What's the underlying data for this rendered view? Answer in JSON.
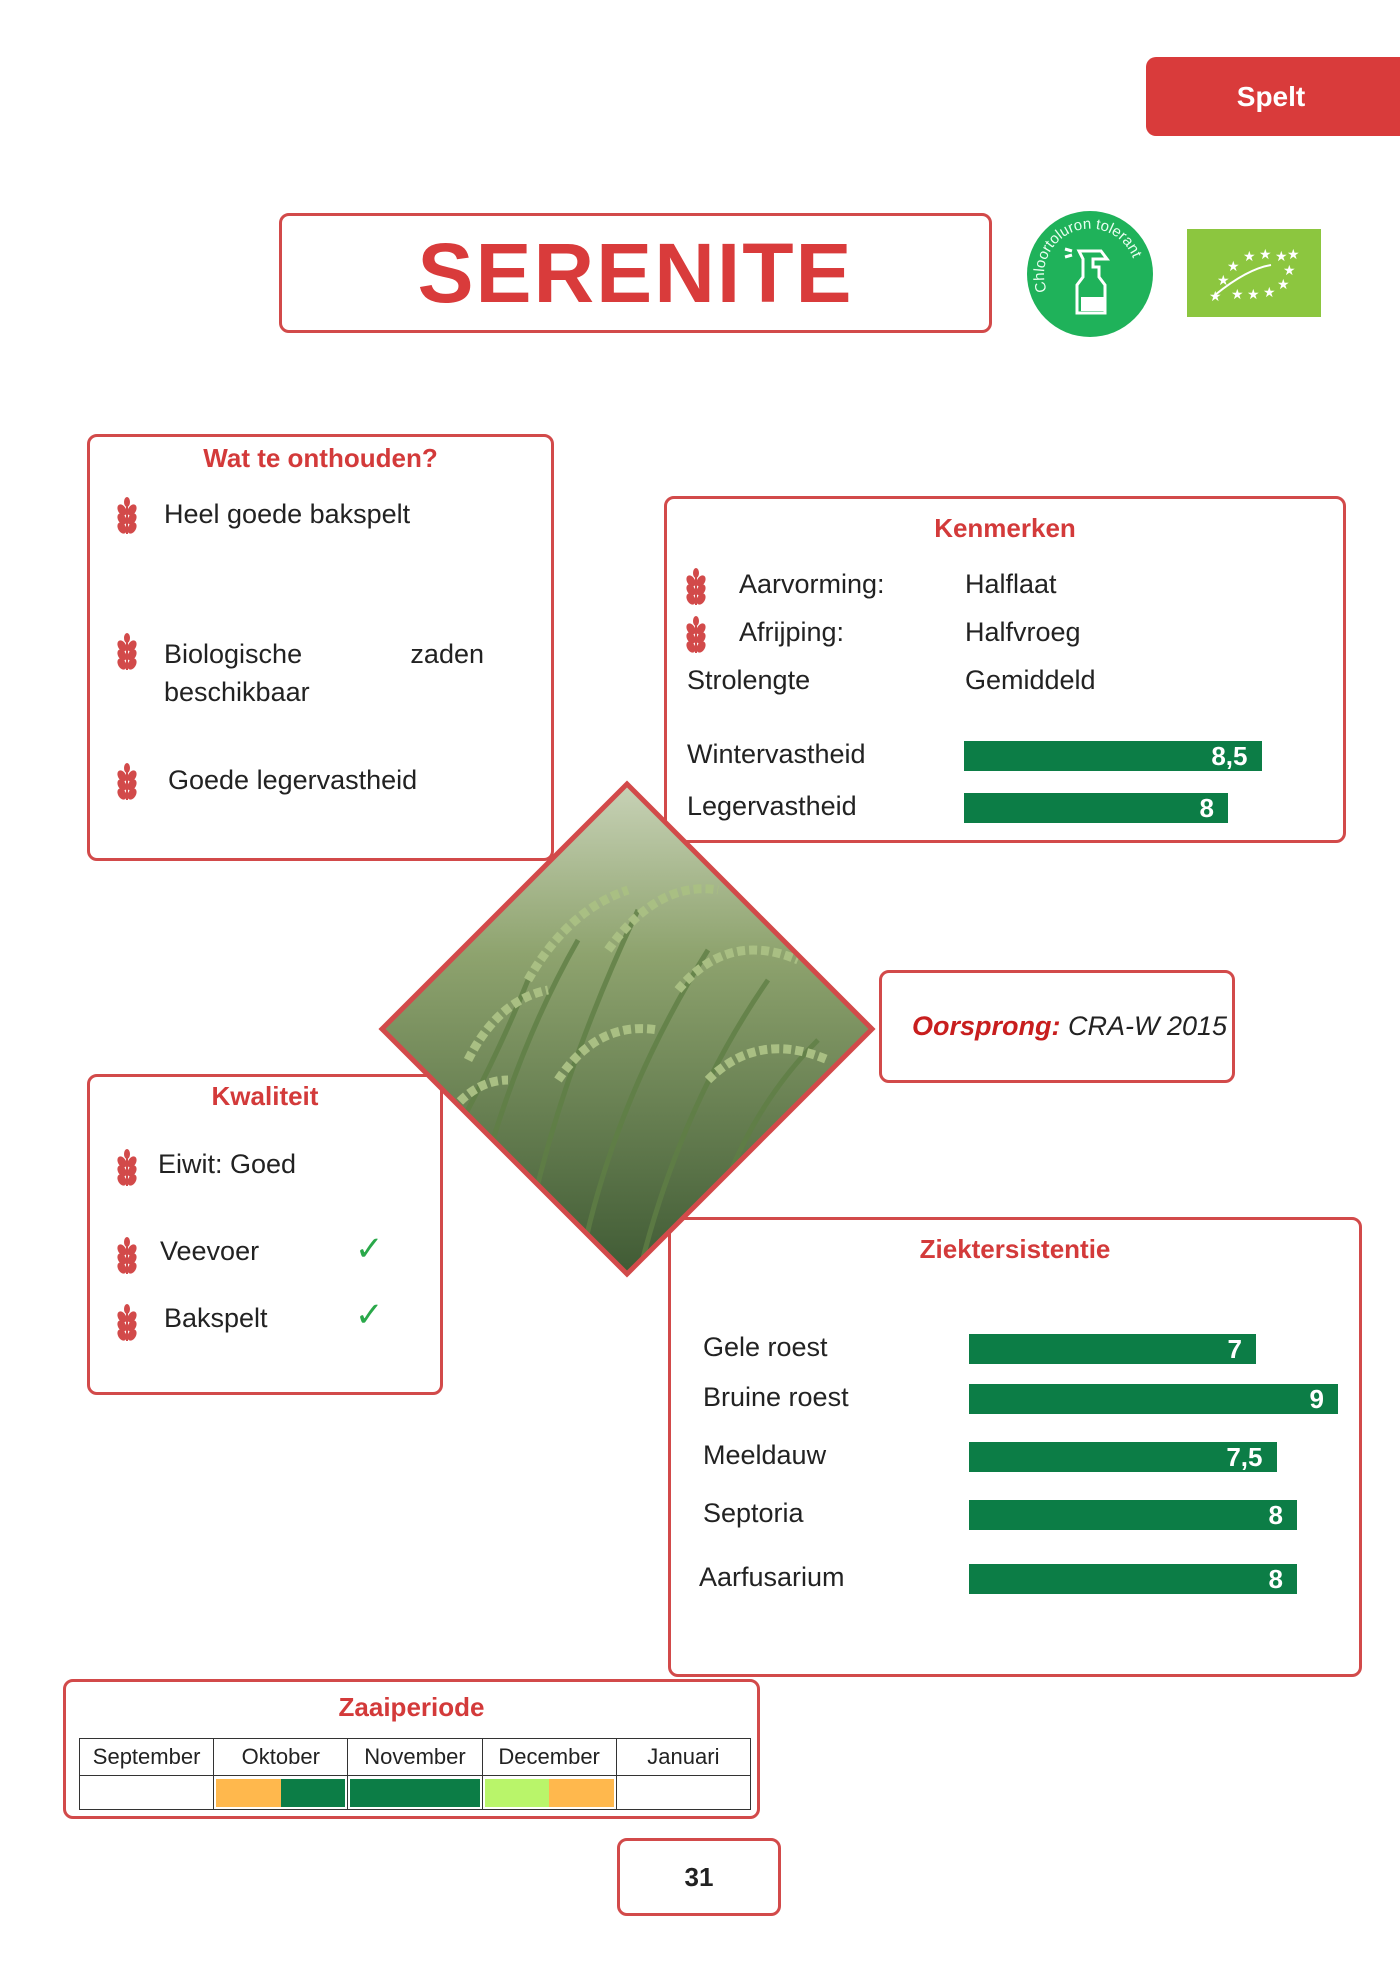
{
  "category_tab": "Spelt",
  "title": "SERENITE",
  "logos": {
    "chlortoluron": "Chloortoluron tolerant",
    "eu_organic": "eu-organic-leaf-logo"
  },
  "onthouden": {
    "heading": "Wat te onthouden?",
    "items": [
      "Heel goede bakspelt",
      "Biologische zaden beschikbaar",
      "Goede legervastheid"
    ]
  },
  "kenmerken": {
    "heading": "Kenmerken",
    "rows": [
      {
        "label": "Aarvorming:",
        "value": "Halflaat"
      },
      {
        "label": "Afrijping:",
        "value": "Halfvroeg"
      },
      {
        "label": "Strolengte",
        "value": "Gemiddeld"
      }
    ],
    "scores": [
      {
        "label": "Wintervastheid",
        "value": "8,5",
        "score": 8.5
      },
      {
        "label": "Legervastheid",
        "value": "8",
        "score": 8
      }
    ]
  },
  "oorsprong": {
    "label": "Oorsprong:",
    "value": "CRA-W 2015"
  },
  "kwaliteit": {
    "heading": "Kwaliteit",
    "eiwit": "Eiwit: Goed",
    "items": [
      {
        "label": "Veevoer",
        "check": "✓"
      },
      {
        "label": "Bakspelt",
        "check": "✓"
      }
    ]
  },
  "ziekte": {
    "heading": "Ziektersistentie",
    "rows": [
      {
        "label": "Gele roest",
        "value": "7",
        "score": 7
      },
      {
        "label": "Bruine roest",
        "value": "9",
        "score": 9
      },
      {
        "label": "Meeldauw",
        "value": "7,5",
        "score": 7.5
      },
      {
        "label": "Septoria",
        "value": "8",
        "score": 8
      },
      {
        "label": "Aarfusarium",
        "value": "8",
        "score": 8
      }
    ]
  },
  "zaaiperiode": {
    "heading": "Zaaiperiode",
    "months": [
      "September",
      "Oktober",
      "November",
      "December",
      "Januari"
    ],
    "colors": {
      "optimal": "#0c7d46",
      "acceptable": "#ffb84d",
      "late": "#b9f56a"
    },
    "periods": [
      [],
      [
        "acceptable",
        "optimal"
      ],
      [
        "optimal"
      ],
      [
        "late",
        "acceptable"
      ],
      []
    ]
  },
  "page_number": "31"
}
